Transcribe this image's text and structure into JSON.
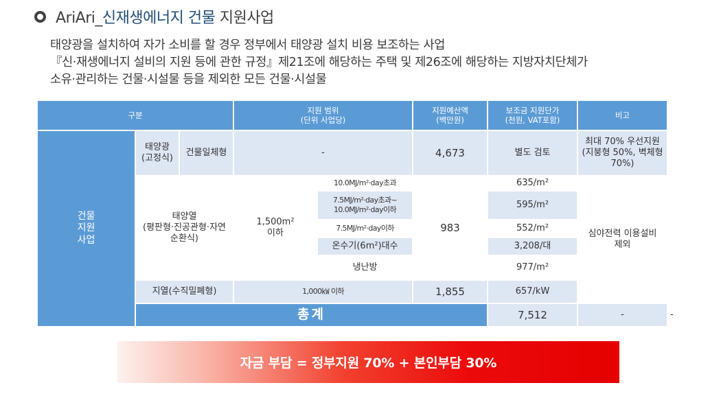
{
  "title": {
    "prefix": "AriAri_",
    "highlight": "신재생에너지 건물",
    "suffix": " 지원사업"
  },
  "description": {
    "line1": "태양광을 설치하여 자가 소비를 할 경우 정부에서 태양광 설치 비용 보조하는 사업",
    "line2": "『신·재생에너지 설비의 지원 등에 관한 규정』제21조에 해당하는 주택 및 제26조에 해당하는 지방자치단체가",
    "line3": "소유·관리하는 건물·시설물 등을 제외한 모든 건물·시설물"
  },
  "table": {
    "headers": {
      "category": "구분",
      "scope_l1": "지원 범위",
      "scope_l2": "(단위 사업당)",
      "budget_l1": "지원예산액",
      "budget_l2": "(백만원)",
      "unit_price_l1": "보조금 지원단가",
      "unit_price_l2": "(천원, VAT포함)",
      "note": "비고"
    },
    "group": {
      "l1": "건물",
      "l2": "지원",
      "l3": "사업"
    },
    "solar_pv": {
      "name_l1": "태양광",
      "name_l2": "(고정식)",
      "type": "건물일체형",
      "scope": "-",
      "budget": "4,673",
      "unit_price": "별도 검토",
      "note_l1": "최대 70% 우선지원",
      "note_l2": "(지붕형 50%, 벽체형",
      "note_l3": "70%)"
    },
    "solar_thermal": {
      "name_l1": "태양열",
      "name_l2": "(평판형·진공관형·자연",
      "name_l3": "순환식)",
      "scope_l1": "1,500m²",
      "scope_l2": "이하",
      "budget": "983",
      "note_l1": "심야전력 이용설비",
      "note_l2": "제외",
      "rows": [
        {
          "condition_l1": "10.0MJ/m²·day초과",
          "condition_l2": "",
          "unit_price": "635/m²"
        },
        {
          "condition_l1": "7.5MJ/m²·day초과~",
          "condition_l2": "10.0MJ/m²·day이하",
          "unit_price": "595/m²"
        },
        {
          "condition_l1": "7.5MJ/m²·day이하",
          "condition_l2": "",
          "unit_price": "552/m²"
        },
        {
          "condition_l1": "온수기(6m²)대수",
          "condition_l2": "",
          "unit_price": "3,208/대"
        },
        {
          "condition_l1": "냉난방",
          "condition_l2": "",
          "unit_price": "977/m²"
        }
      ]
    },
    "geothermal": {
      "name": "지열(수직밀폐형)",
      "scope": "1,000㎾ 이하",
      "budget": "1,855",
      "unit_price": "657/kW"
    },
    "total": {
      "label": "총계",
      "budget": "7,512",
      "unit_price": "-",
      "note": "-"
    }
  },
  "banner": {
    "text": "자금 부담 = 정부지원 70% + 본인부담 30%"
  },
  "colors": {
    "header_blue": "#5b9bd5",
    "cell_light": "#dde6f3",
    "banner_red": "#e60000",
    "title_accent": "#1f4e79"
  }
}
